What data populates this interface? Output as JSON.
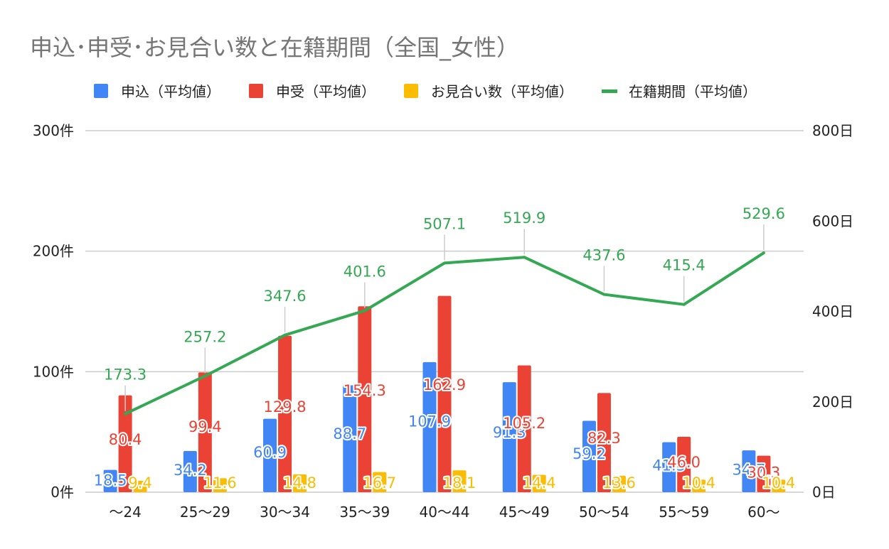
{
  "chart_data": {
    "type": "bar",
    "title": "申込･申受･お見合い数と在籍期間（全国_女性）",
    "categories": [
      "～24",
      "25～29",
      "30～34",
      "35～39",
      "40～44",
      "45～49",
      "50～54",
      "55～59",
      "60～"
    ],
    "series": [
      {
        "name": "申込（平均値）",
        "type": "bar",
        "axis": "left",
        "color": "#4285f4",
        "values": [
          18.5,
          34.2,
          60.9,
          88.7,
          107.9,
          91.3,
          59.2,
          41.5,
          34.7
        ]
      },
      {
        "name": "申受（平均値）",
        "type": "bar",
        "axis": "left",
        "color": "#ea4335",
        "values": [
          80.4,
          99.4,
          129.8,
          154.3,
          162.9,
          105.2,
          82.3,
          46.0,
          30.3
        ]
      },
      {
        "name": "お見合い数（平均値）",
        "type": "bar",
        "axis": "left",
        "color": "#fbbc04",
        "values": [
          9.4,
          11.6,
          14.8,
          16.7,
          18.1,
          14.4,
          13.6,
          10.4,
          10.4
        ]
      },
      {
        "name": "在籍期間（平均値）",
        "type": "line",
        "axis": "right",
        "color": "#34a853",
        "values": [
          173.3,
          257.2,
          347.6,
          401.6,
          507.1,
          519.9,
          437.6,
          415.4,
          529.6
        ]
      }
    ],
    "left_axis": {
      "min": 0,
      "max": 300,
      "ticks": [
        0,
        100,
        200,
        300
      ],
      "tick_labels": [
        "0件",
        "100件",
        "200件",
        "300件"
      ]
    },
    "right_axis": {
      "min": 0,
      "max": 800,
      "ticks": [
        0,
        200,
        400,
        600,
        800
      ],
      "tick_labels": [
        "0日",
        "200日",
        "400日",
        "600日",
        "800日"
      ]
    },
    "grid": true,
    "legend_position": "top-left"
  }
}
